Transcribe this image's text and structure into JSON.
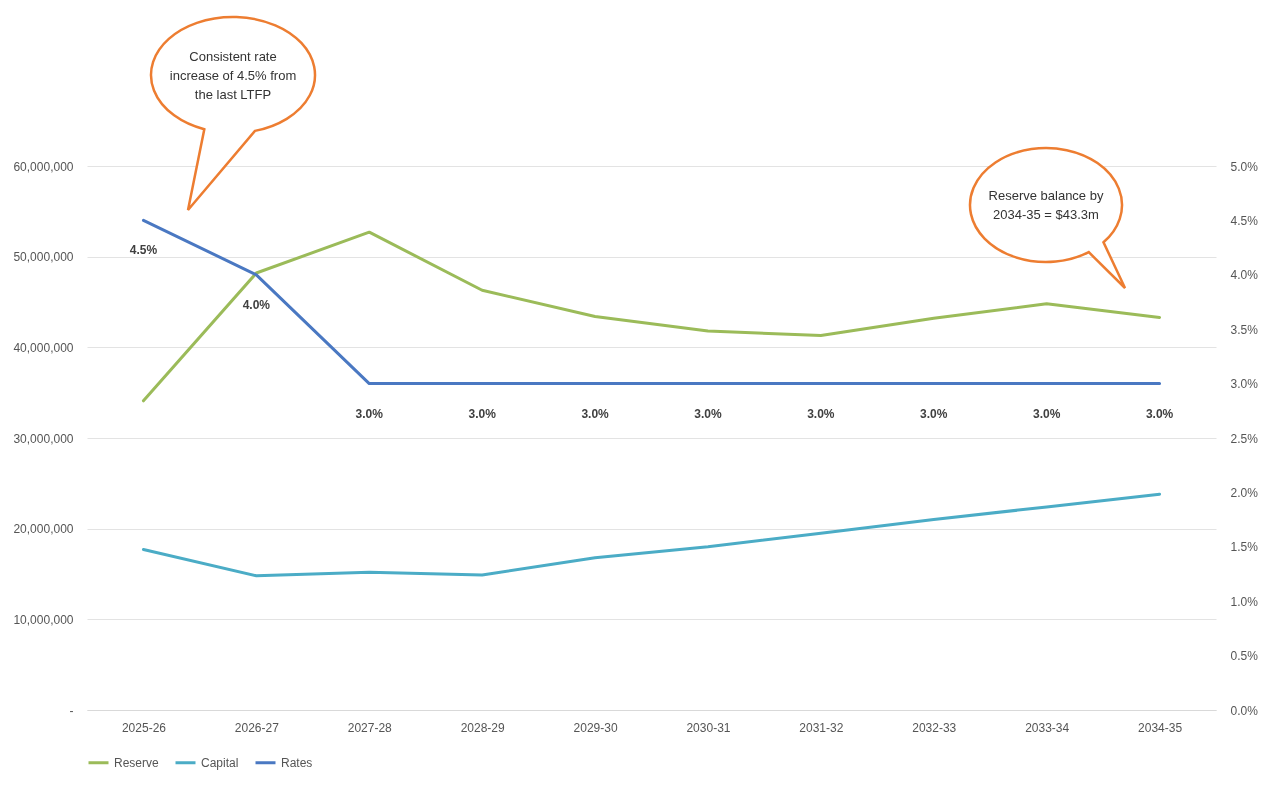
{
  "chart_data": {
    "type": "line",
    "categories": [
      "2025-26",
      "2026-27",
      "2027-28",
      "2028-29",
      "2029-30",
      "2030-31",
      "2031-32",
      "2032-33",
      "2033-34",
      "2034-35"
    ],
    "series": [
      {
        "name": "Reserve",
        "color": "#9bbb59",
        "values": [
          34100000,
          48200000,
          52700000,
          46300000,
          43400000,
          41800000,
          41300000,
          43200000,
          44800000,
          43300000
        ]
      },
      {
        "name": "Capital",
        "color": "#4bacc6",
        "values": [
          17700000,
          14800000,
          15200000,
          14900000,
          16800000,
          18000000,
          19500000,
          21000000,
          22400000,
          23800000
        ]
      },
      {
        "name": "Rates",
        "color": "#4a78c2",
        "axis": "y2",
        "values": [
          4.5,
          4.0,
          3.0,
          3.0,
          3.0,
          3.0,
          3.0,
          3.0,
          3.0,
          3.0
        ],
        "value_labels": [
          "4.5%",
          "4.0%",
          "3.0%",
          "3.0%",
          "3.0%",
          "3.0%",
          "3.0%",
          "3.0%",
          "3.0%",
          "3.0%"
        ]
      }
    ],
    "ylim": [
      0,
      60000000
    ],
    "yticks": [
      {
        "value": 0,
        "label": "-"
      },
      {
        "value": 10000000,
        "label": "10,000,000"
      },
      {
        "value": 20000000,
        "label": "20,000,000"
      },
      {
        "value": 30000000,
        "label": "30,000,000"
      },
      {
        "value": 40000000,
        "label": "40,000,000"
      },
      {
        "value": 50000000,
        "label": "50,000,000"
      },
      {
        "value": 60000000,
        "label": "60,000,000"
      }
    ],
    "y2lim": [
      0,
      5
    ],
    "y2ticks": [
      {
        "value": 0,
        "label": "0.0%"
      },
      {
        "value": 0.5,
        "label": "0.5%"
      },
      {
        "value": 1,
        "label": "1.0%"
      },
      {
        "value": 1.5,
        "label": "1.5%"
      },
      {
        "value": 2,
        "label": "2.0%"
      },
      {
        "value": 2.5,
        "label": "2.5%"
      },
      {
        "value": 3,
        "label": "3.0%"
      },
      {
        "value": 3.5,
        "label": "3.5%"
      },
      {
        "value": 4,
        "label": "4.0%"
      },
      {
        "value": 4.5,
        "label": "4.5%"
      },
      {
        "value": 5,
        "label": "5.0%"
      }
    ],
    "grid": "y",
    "legend": "bottom",
    "marker": "none",
    "line_style": "solid",
    "annotations": [
      "Consistent rate increase of 4.5% from the last LTFP",
      "Reserve balance by 2034-35 = $43.3m"
    ]
  }
}
